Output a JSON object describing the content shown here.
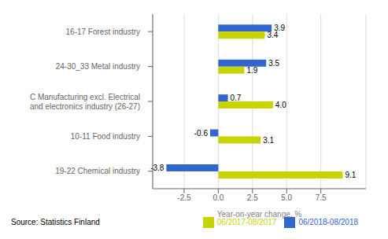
{
  "chart_data": {
    "type": "bar",
    "orientation": "horizontal",
    "categories": [
      "19-22 Chemical industry",
      "10-11 Food industry",
      "C Manufacturing excl. Electrical\nand electronics industry (26-27)",
      "24-30_33 Metal industry",
      "16-17 Forest industry"
    ],
    "series": [
      {
        "name": "06/2018-08/2018",
        "color": "#3366CC",
        "values": [
          -3.8,
          -0.6,
          0.7,
          3.5,
          3.9
        ],
        "value_labels": [
          "-3.8",
          "-0.6",
          "0.7",
          "3.5",
          "3.9"
        ]
      },
      {
        "name": "06/2017-08/2017",
        "color": "#C8D400",
        "values": [
          9.1,
          3.1,
          4.0,
          1.9,
          3.4
        ],
        "value_labels": [
          "9.1",
          "3.1",
          "4.0",
          "1.9",
          "3.4"
        ]
      }
    ],
    "xlabel": "Year-on-year change, %",
    "xlim": [
      -4.8,
      10.8
    ],
    "xticks": [
      -2.5,
      {
        "value": 0,
        "label": "0.0"
      },
      2.5,
      {
        "value": 5,
        "label": "5.0"
      },
      7.5
    ],
    "grid": true,
    "data_labels": true,
    "legend": "lower right",
    "annotations": [
      "Source: Statistics Finland"
    ]
  }
}
